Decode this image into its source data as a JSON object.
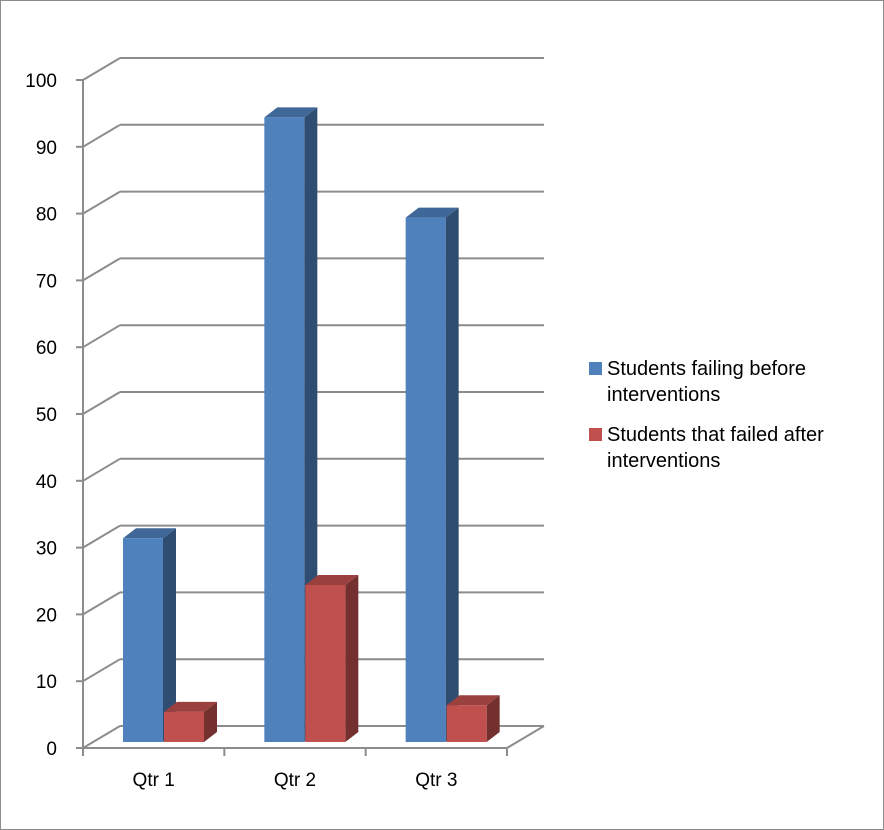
{
  "chart_data": {
    "type": "bar",
    "style": "3d-clustered-column",
    "categories": [
      "Qtr 1",
      "Qtr 2",
      "Qtr 3"
    ],
    "series": [
      {
        "name": "Students failing before interventions",
        "values": [
          32,
          95,
          80
        ],
        "color": "#4f81bd"
      },
      {
        "name": "Students that failed after interventions",
        "values": [
          6,
          25,
          7
        ],
        "color": "#c0504d"
      }
    ],
    "y_ticks": [
      "0",
      "10",
      "20",
      "30",
      "40",
      "50",
      "60",
      "70",
      "80",
      "90",
      "100"
    ],
    "ylim": [
      0,
      100
    ],
    "grid": true,
    "legend_position": "right"
  },
  "legend": {
    "items": [
      {
        "lines": [
          "Students failing before",
          "interventions"
        ]
      },
      {
        "lines": [
          "Students that failed after",
          "interventions"
        ]
      }
    ]
  }
}
